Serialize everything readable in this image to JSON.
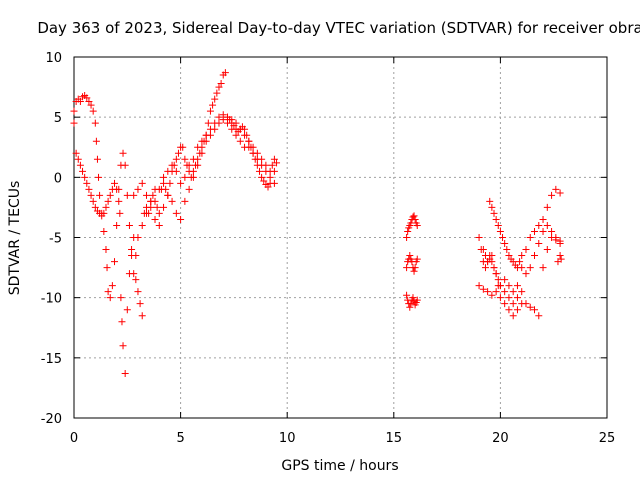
{
  "chart_data": {
    "type": "scatter",
    "title": "Day 363 of 2023, Sidereal Day-to-day VTEC variation (SDTVAR) for receiver obra",
    "xlabel": "GPS time / hours",
    "ylabel": "SDTVAR / TECUs",
    "xlim": [
      0,
      25
    ],
    "ylim": [
      -20,
      10
    ],
    "xticks": [
      0,
      5,
      10,
      15,
      20,
      25
    ],
    "yticks": [
      -20,
      -15,
      -10,
      -5,
      0,
      5,
      10
    ],
    "xtick_labels": [
      "0",
      "5",
      "10",
      "15",
      "20",
      "25"
    ],
    "ytick_labels": [
      "-20",
      "-15",
      "-10",
      "-5",
      "0",
      "5",
      "10"
    ],
    "grid": true,
    "legend": "none",
    "marker": "plus",
    "color": "#ff0000",
    "series": [
      {
        "x": [
          0.0,
          0.1,
          0.2,
          0.3,
          0.4,
          0.5,
          0.6,
          0.7,
          0.8,
          0.9,
          1.0,
          1.05,
          1.1,
          1.15,
          1.2,
          1.3,
          1.4,
          1.5,
          1.55,
          1.6,
          1.7,
          1.8,
          1.9,
          2.0,
          2.1,
          2.2,
          2.3,
          2.4,
          2.5,
          2.6,
          2.7,
          2.8,
          2.9,
          3.0,
          3.1,
          3.2,
          3.3,
          3.4,
          3.5,
          3.6,
          3.7,
          3.8,
          3.9,
          4.0,
          4.1,
          4.2,
          4.3,
          4.4,
          4.5,
          4.6,
          4.7,
          4.8,
          4.9,
          5.0,
          5.1,
          5.2,
          5.3,
          5.4,
          5.5,
          5.6,
          5.7,
          5.8,
          5.9,
          6.0,
          6.1,
          6.2,
          6.3,
          6.4,
          6.5,
          6.6,
          6.7,
          6.8,
          6.9,
          7.0,
          7.1,
          7.2,
          7.3,
          7.4,
          7.5,
          7.6,
          7.7,
          7.8,
          7.9,
          8.0,
          8.1,
          8.2,
          8.3,
          8.4,
          8.5,
          8.6,
          8.7,
          8.8,
          8.9,
          9.0,
          9.1,
          9.2,
          9.3,
          9.4,
          9.5
        ],
        "y": [
          4.5,
          6.3,
          6.5,
          6.3,
          6.7,
          6.8,
          6.6,
          6.3,
          6.0,
          5.5,
          4.5,
          3.0,
          1.5,
          0.0,
          -1.5,
          -3.0,
          -4.5,
          -6.0,
          -7.5,
          -9.5,
          -10.0,
          -9.0,
          -7.0,
          -4.0,
          -1.0,
          1.0,
          2.0,
          1.0,
          -1.5,
          -4.0,
          -6.5,
          -8.0,
          -8.5,
          -9.5,
          -10.5,
          -11.5,
          -3.0,
          -2.5,
          -3.0,
          -2.0,
          -1.5,
          -1.0,
          -2.5,
          -3.0,
          -1.0,
          -0.5,
          -1.0,
          -1.5,
          -0.5,
          0.5,
          1.0,
          1.5,
          2.0,
          2.5,
          2.5,
          1.5,
          1.0,
          0.5,
          0.0,
          0.5,
          1.0,
          1.5,
          2.0,
          2.5,
          3.0,
          3.5,
          4.5,
          5.5,
          6.0,
          6.5,
          7.0,
          7.5,
          7.8,
          8.5,
          8.7,
          5.0,
          4.8,
          4.5,
          4.3,
          4.0,
          3.8,
          4.0,
          4.2,
          4.0,
          3.5,
          3.0,
          2.5,
          2.0,
          1.5,
          1.0,
          0.5,
          0.0,
          -0.3,
          -0.6,
          -0.8,
          -0.5,
          1.0,
          1.5,
          1.2
        ]
      },
      {
        "x": [
          0.0,
          0.1,
          0.2,
          0.3,
          0.4,
          0.5,
          0.6,
          0.7,
          0.8,
          0.9,
          1.0,
          1.1,
          1.2,
          1.3,
          1.4,
          1.5,
          1.6,
          1.7,
          1.8,
          1.9,
          2.0,
          2.1,
          2.15,
          2.2,
          2.25,
          2.3,
          2.4,
          2.5,
          2.6,
          2.7,
          2.8,
          2.9,
          3.0,
          3.2,
          3.4,
          3.6,
          3.8,
          4.0,
          4.2,
          4.4,
          4.6,
          4.8,
          5.0,
          5.2,
          5.4,
          5.6,
          5.8,
          6.0,
          6.2,
          6.4,
          6.6,
          6.8,
          7.0,
          7.2,
          7.4,
          7.6,
          7.8,
          8.0,
          8.2,
          8.4,
          8.6,
          8.8,
          9.0,
          9.2,
          9.4
        ],
        "y": [
          5.5,
          2.0,
          1.5,
          1.0,
          0.5,
          0.0,
          -0.5,
          -1.0,
          -1.5,
          -2.0,
          -2.5,
          -2.8,
          -3.0,
          -3.2,
          -3.0,
          -2.5,
          -2.0,
          -1.5,
          -1.0,
          -0.5,
          -1.0,
          -2.0,
          -3.0,
          -10.0,
          -12.0,
          -14.0,
          -16.3,
          -11.0,
          -8.0,
          -6.0,
          -5.0,
          -6.5,
          -5.0,
          -4.0,
          -3.0,
          -2.0,
          -3.5,
          -4.0,
          -2.5,
          -1.5,
          -2.0,
          -3.0,
          -3.5,
          -2.0,
          -1.0,
          0.0,
          1.0,
          2.0,
          3.0,
          3.5,
          4.0,
          4.5,
          4.8,
          4.5,
          4.0,
          3.5,
          3.0,
          2.5,
          2.5,
          2.0,
          1.5,
          1.0,
          0.5,
          0.0,
          -0.5
        ]
      },
      {
        "x": [
          2.8,
          3.0,
          3.2,
          3.4,
          3.6,
          3.8,
          4.0,
          4.2,
          4.4,
          4.6,
          4.8,
          5.0,
          5.2,
          5.4,
          5.6,
          5.8,
          6.0,
          6.2,
          6.4,
          6.6,
          6.8,
          7.0,
          7.2,
          7.4,
          7.6,
          7.8,
          8.0,
          8.2,
          8.4,
          8.6,
          8.8,
          9.0,
          9.2,
          9.4
        ],
        "y": [
          -1.5,
          -1.0,
          -0.5,
          -1.5,
          -2.5,
          -2.0,
          -1.0,
          0.0,
          0.5,
          1.0,
          0.5,
          -0.5,
          0.0,
          1.0,
          1.5,
          2.5,
          3.0,
          3.5,
          4.0,
          4.5,
          5.0,
          5.2,
          5.0,
          4.8,
          4.5,
          4.0,
          3.5,
          3.0,
          2.5,
          2.0,
          1.5,
          1.0,
          0.5,
          0.5
        ]
      },
      {
        "x": [
          15.6,
          15.65,
          15.7,
          15.75,
          15.8,
          15.85,
          15.9,
          15.95,
          16.0,
          16.05,
          16.1,
          15.6,
          15.65,
          15.7,
          15.75,
          15.8,
          15.85,
          15.9,
          15.95,
          16.0,
          16.05,
          16.1,
          15.6,
          15.65,
          15.7,
          15.75,
          15.8,
          15.85,
          15.9,
          15.95,
          16.0,
          16.05,
          16.1
        ],
        "y": [
          -5.0,
          -4.5,
          -4.2,
          -4.0,
          -3.8,
          -3.5,
          -3.3,
          -3.2,
          -3.5,
          -3.8,
          -4.0,
          -7.5,
          -7.0,
          -6.8,
          -6.5,
          -6.8,
          -7.0,
          -7.5,
          -7.8,
          -7.5,
          -7.0,
          -6.8,
          -9.8,
          -10.2,
          -10.5,
          -10.8,
          -10.5,
          -10.2,
          -10.0,
          -10.3,
          -10.6,
          -10.4,
          -10.2
        ]
      },
      {
        "x": [
          19.0,
          19.1,
          19.2,
          19.3,
          19.4,
          19.5,
          19.6,
          19.7,
          19.8,
          19.9,
          20.0,
          20.2,
          20.4,
          20.6,
          20.8,
          21.0,
          21.2,
          21.4,
          21.6,
          21.8,
          22.0,
          22.2,
          22.4,
          22.6,
          22.8
        ],
        "y": [
          -5.0,
          -6.0,
          -7.0,
          -7.5,
          -7.0,
          -6.5,
          -7.0,
          -7.5,
          -8.0,
          -8.5,
          -9.0,
          -9.5,
          -10.0,
          -10.5,
          -9.0,
          -7.5,
          -6.0,
          -5.0,
          -4.5,
          -4.0,
          -3.5,
          -2.5,
          -1.5,
          -1.0,
          -1.3
        ]
      },
      {
        "x": [
          19.2,
          19.3,
          19.4,
          19.5,
          19.6,
          19.7,
          19.8,
          19.9,
          20.0,
          20.2,
          20.4,
          20.6,
          20.8,
          21.0,
          21.2,
          21.4,
          21.6,
          21.8,
          22.0,
          22.2,
          22.4,
          22.6,
          22.8
        ],
        "y": [
          -6.0,
          -6.5,
          -7.0,
          -6.8,
          -6.5,
          -7.5,
          -8.0,
          -9.0,
          -10.0,
          -10.5,
          -11.0,
          -11.5,
          -11.0,
          -10.5,
          -10.5,
          -10.8,
          -11.0,
          -11.5,
          -7.5,
          -6.0,
          -5.0,
          -5.2,
          -5.5
        ]
      },
      {
        "x": [
          19.0,
          19.2,
          19.4,
          19.6,
          19.8,
          20.0,
          20.2,
          20.4,
          20.6,
          20.8,
          21.0,
          21.2,
          21.4,
          21.6,
          21.8,
          22.0,
          22.2,
          22.4,
          22.6,
          22.8,
          19.5,
          19.6,
          19.7,
          19.8,
          19.9,
          20.0,
          20.1,
          20.2,
          20.3,
          20.4,
          20.5,
          20.6,
          20.7,
          20.8,
          20.9,
          21.0,
          22.7,
          22.8,
          22.85
        ],
        "y": [
          -9.0,
          -9.3,
          -9.5,
          -9.8,
          -9.5,
          -9.0,
          -8.5,
          -9.0,
          -9.5,
          -10.0,
          -9.5,
          -8.0,
          -7.5,
          -6.5,
          -5.5,
          -4.5,
          -4.0,
          -4.5,
          -5.0,
          -5.3,
          -2.0,
          -2.5,
          -3.0,
          -3.5,
          -4.0,
          -4.5,
          -5.0,
          -5.5,
          -6.0,
          -6.5,
          -6.8,
          -7.0,
          -7.3,
          -7.5,
          -7.0,
          -6.5,
          -7.0,
          -6.5,
          -6.8
        ]
      }
    ]
  }
}
